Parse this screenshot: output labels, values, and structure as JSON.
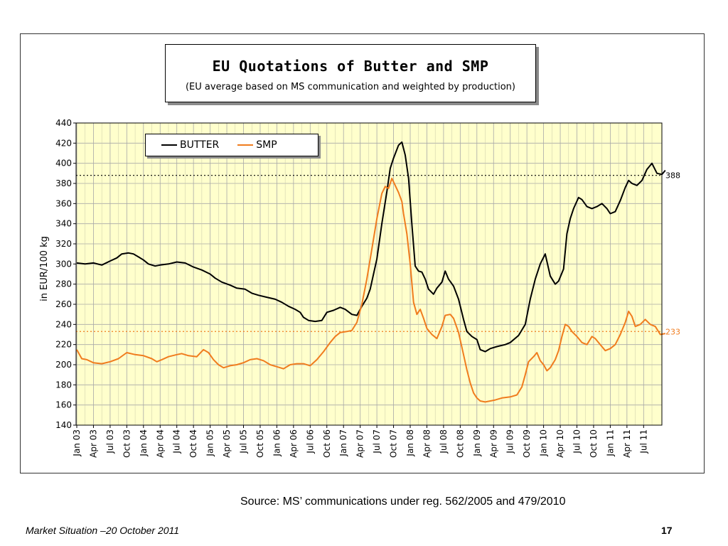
{
  "chart_data": {
    "type": "line",
    "title": "EU Quotations of Butter and SMP",
    "subtitle": "(EU average based on MS communication and weighted by production)",
    "ylabel": "in EUR/100 kg",
    "xlabel": "",
    "ylim": [
      140,
      440
    ],
    "yticks": [
      140,
      160,
      180,
      200,
      220,
      240,
      260,
      280,
      300,
      320,
      340,
      360,
      380,
      400,
      420,
      440
    ],
    "x_ticks": [
      "Jan 03",
      "Apr 03",
      "Jul 03",
      "Oct 03",
      "Jan 04",
      "Apr 04",
      "Jul 04",
      "Oct 04",
      "Jan 05",
      "Apr 05",
      "Jul 05",
      "Oct 05",
      "Jan 06",
      "Apr 06",
      "Jul 06",
      "Oct 06",
      "Jan 07",
      "Apr 07",
      "Jul 07",
      "Oct 07",
      "Jan 08",
      "Apr 08",
      "Jul 08",
      "Oct 08",
      "Jan 09",
      "Apr 09",
      "Jul 09",
      "Oct 09",
      "Jan 10",
      "Apr 10",
      "Jul 10",
      "Oct 10",
      "Jan 11",
      "Apr 11",
      "Jul 11"
    ],
    "x_unit": "quarters since Jan 03",
    "grid": true,
    "legend_placement": "top-left",
    "series": [
      {
        "name": "BUTTER",
        "color": "#000000",
        "points": [
          [
            0,
            301
          ],
          [
            0.5,
            300
          ],
          [
            1,
            301
          ],
          [
            1.5,
            299
          ],
          [
            2,
            303
          ],
          [
            2.4,
            306
          ],
          [
            2.7,
            310
          ],
          [
            3.1,
            311
          ],
          [
            3.4,
            310
          ],
          [
            3.7,
            307
          ],
          [
            4,
            304
          ],
          [
            4.3,
            300
          ],
          [
            4.7,
            298
          ],
          [
            5,
            299
          ],
          [
            5.5,
            300
          ],
          [
            6,
            302
          ],
          [
            6.5,
            301
          ],
          [
            7,
            297
          ],
          [
            7.5,
            294
          ],
          [
            8,
            290
          ],
          [
            8.3,
            286
          ],
          [
            8.7,
            282
          ],
          [
            9.2,
            279
          ],
          [
            9.6,
            276
          ],
          [
            10.1,
            275
          ],
          [
            10.5,
            271
          ],
          [
            10.9,
            269
          ],
          [
            11.4,
            267
          ],
          [
            11.9,
            265
          ],
          [
            12.3,
            262
          ],
          [
            12.7,
            258
          ],
          [
            13.1,
            255
          ],
          [
            13.4,
            252
          ],
          [
            13.6,
            247
          ],
          [
            13.9,
            244
          ],
          [
            14.3,
            243
          ],
          [
            14.7,
            244
          ],
          [
            15,
            252
          ],
          [
            15.4,
            254
          ],
          [
            15.8,
            257
          ],
          [
            16.1,
            255
          ],
          [
            16.5,
            250
          ],
          [
            16.8,
            249
          ],
          [
            17.1,
            258
          ],
          [
            17.4,
            266
          ],
          [
            17.6,
            275
          ],
          [
            17.8,
            290
          ],
          [
            18,
            305
          ],
          [
            18.3,
            340
          ],
          [
            18.6,
            372
          ],
          [
            18.8,
            395
          ],
          [
            19,
            405
          ],
          [
            19.3,
            418
          ],
          [
            19.5,
            421
          ],
          [
            19.7,
            408
          ],
          [
            19.9,
            385
          ],
          [
            20.1,
            340
          ],
          [
            20.3,
            298
          ],
          [
            20.5,
            293
          ],
          [
            20.7,
            292
          ],
          [
            20.9,
            285
          ],
          [
            21.1,
            275
          ],
          [
            21.4,
            270
          ],
          [
            21.6,
            276
          ],
          [
            21.9,
            282
          ],
          [
            22.1,
            293
          ],
          [
            22.3,
            285
          ],
          [
            22.6,
            278
          ],
          [
            22.9,
            265
          ],
          [
            23.2,
            245
          ],
          [
            23.4,
            233
          ],
          [
            23.7,
            228
          ],
          [
            24,
            225
          ],
          [
            24.2,
            215
          ],
          [
            24.5,
            213
          ],
          [
            24.8,
            216
          ],
          [
            25.2,
            218
          ],
          [
            25.7,
            220
          ],
          [
            26,
            222
          ],
          [
            26.5,
            229
          ],
          [
            26.9,
            240
          ],
          [
            27.2,
            265
          ],
          [
            27.5,
            285
          ],
          [
            27.8,
            300
          ],
          [
            28.1,
            310
          ],
          [
            28.4,
            288
          ],
          [
            28.7,
            280
          ],
          [
            28.9,
            283
          ],
          [
            29.2,
            295
          ],
          [
            29.4,
            330
          ],
          [
            29.6,
            345
          ],
          [
            29.8,
            355
          ],
          [
            30.1,
            366
          ],
          [
            30.3,
            364
          ],
          [
            30.6,
            357
          ],
          [
            30.9,
            355
          ],
          [
            31.2,
            357
          ],
          [
            31.5,
            360
          ],
          [
            31.8,
            355
          ],
          [
            32,
            350
          ],
          [
            32.3,
            352
          ],
          [
            32.6,
            363
          ],
          [
            32.9,
            376
          ],
          [
            33.1,
            383
          ],
          [
            33.3,
            380
          ],
          [
            33.6,
            378
          ],
          [
            33.9,
            383
          ],
          [
            34.2,
            394
          ],
          [
            34.5,
            400
          ],
          [
            34.8,
            390
          ],
          [
            35.1,
            389
          ],
          [
            35.3,
            393
          ]
        ]
      },
      {
        "name": "SMP",
        "color": "#f07c1e",
        "points": [
          [
            0,
            215
          ],
          [
            0.3,
            206
          ],
          [
            0.6,
            205
          ],
          [
            1,
            202
          ],
          [
            1.5,
            201
          ],
          [
            2,
            203
          ],
          [
            2.5,
            206
          ],
          [
            3,
            212
          ],
          [
            3.5,
            210
          ],
          [
            4,
            209
          ],
          [
            4.5,
            206
          ],
          [
            4.8,
            203
          ],
          [
            5.1,
            205
          ],
          [
            5.5,
            208
          ],
          [
            6,
            210
          ],
          [
            6.3,
            211
          ],
          [
            6.7,
            209
          ],
          [
            7.2,
            208
          ],
          [
            7.6,
            215
          ],
          [
            7.9,
            212
          ],
          [
            8.2,
            205
          ],
          [
            8.5,
            200
          ],
          [
            8.8,
            197
          ],
          [
            9.2,
            199
          ],
          [
            9.6,
            200
          ],
          [
            10,
            202
          ],
          [
            10.4,
            205
          ],
          [
            10.8,
            206
          ],
          [
            11.2,
            204
          ],
          [
            11.6,
            200
          ],
          [
            12,
            198
          ],
          [
            12.4,
            196
          ],
          [
            12.8,
            200
          ],
          [
            13.2,
            201
          ],
          [
            13.6,
            201
          ],
          [
            14,
            199
          ],
          [
            14.4,
            205
          ],
          [
            14.8,
            213
          ],
          [
            15.2,
            222
          ],
          [
            15.5,
            228
          ],
          [
            15.8,
            232
          ],
          [
            16.2,
            233
          ],
          [
            16.5,
            234
          ],
          [
            16.8,
            242
          ],
          [
            17.1,
            260
          ],
          [
            17.4,
            285
          ],
          [
            17.7,
            315
          ],
          [
            18,
            345
          ],
          [
            18.3,
            370
          ],
          [
            18.5,
            377
          ],
          [
            18.7,
            375
          ],
          [
            18.9,
            385
          ],
          [
            19.1,
            378
          ],
          [
            19.3,
            371
          ],
          [
            19.5,
            362
          ],
          [
            19.6,
            350
          ],
          [
            19.8,
            330
          ],
          [
            20,
            300
          ],
          [
            20.2,
            262
          ],
          [
            20.4,
            250
          ],
          [
            20.6,
            255
          ],
          [
            20.8,
            246
          ],
          [
            21,
            236
          ],
          [
            21.3,
            230
          ],
          [
            21.6,
            226
          ],
          [
            21.9,
            238
          ],
          [
            22.1,
            249
          ],
          [
            22.4,
            250
          ],
          [
            22.6,
            246
          ],
          [
            22.9,
            232
          ],
          [
            23.2,
            210
          ],
          [
            23.4,
            195
          ],
          [
            23.6,
            182
          ],
          [
            23.8,
            172
          ],
          [
            24,
            167
          ],
          [
            24.2,
            164
          ],
          [
            24.5,
            163
          ],
          [
            24.8,
            164
          ],
          [
            25.1,
            165
          ],
          [
            25.5,
            167
          ],
          [
            26,
            168
          ],
          [
            26.4,
            170
          ],
          [
            26.7,
            178
          ],
          [
            26.9,
            190
          ],
          [
            27.1,
            203
          ],
          [
            27.4,
            208
          ],
          [
            27.6,
            212
          ],
          [
            27.8,
            204
          ],
          [
            28,
            200
          ],
          [
            28.2,
            194
          ],
          [
            28.4,
            197
          ],
          [
            28.7,
            205
          ],
          [
            28.9,
            214
          ],
          [
            29.1,
            228
          ],
          [
            29.3,
            240
          ],
          [
            29.5,
            238
          ],
          [
            29.7,
            233
          ],
          [
            30,
            228
          ],
          [
            30.3,
            222
          ],
          [
            30.6,
            220
          ],
          [
            30.9,
            228
          ],
          [
            31.1,
            226
          ],
          [
            31.4,
            220
          ],
          [
            31.7,
            214
          ],
          [
            32,
            216
          ],
          [
            32.3,
            220
          ],
          [
            32.6,
            230
          ],
          [
            32.9,
            242
          ],
          [
            33.1,
            253
          ],
          [
            33.3,
            248
          ],
          [
            33.5,
            238
          ],
          [
            33.8,
            240
          ],
          [
            34.1,
            245
          ],
          [
            34.4,
            240
          ],
          [
            34.7,
            238
          ],
          [
            35,
            230
          ],
          [
            35.3,
            231
          ]
        ]
      }
    ],
    "reference_lines": [
      {
        "value": 388,
        "label": "388",
        "color": "#000000"
      },
      {
        "value": 233,
        "label": "233",
        "color": "#f07c1e"
      }
    ]
  },
  "legend": {
    "butter": "BUTTER",
    "smp": "SMP"
  },
  "source": "Source: MS’ communications under reg. 562/2005 and 479/2010",
  "footer": {
    "left": "Market Situation –20 October 2011",
    "page": "17"
  }
}
